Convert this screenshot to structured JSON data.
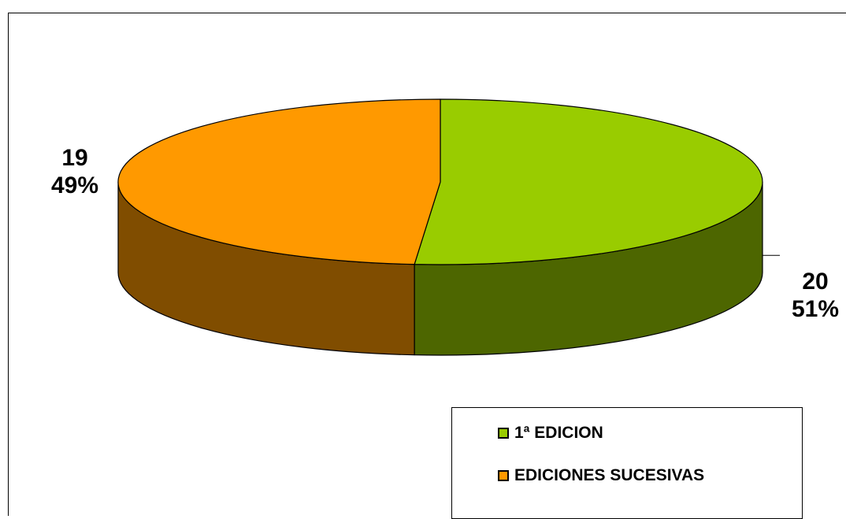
{
  "chart_data": {
    "type": "pie",
    "title": "",
    "three_d": true,
    "legend_position": "bottom-right",
    "slices": [
      {
        "label": "1ª EDICION",
        "value": 20,
        "percent": "51%",
        "color": "#99CC00",
        "side_color": "#4D6600"
      },
      {
        "label": "EDICIONES SUCESIVAS",
        "value": 19,
        "percent": "49%",
        "color": "#FF9900",
        "side_color": "#804D00"
      }
    ]
  }
}
